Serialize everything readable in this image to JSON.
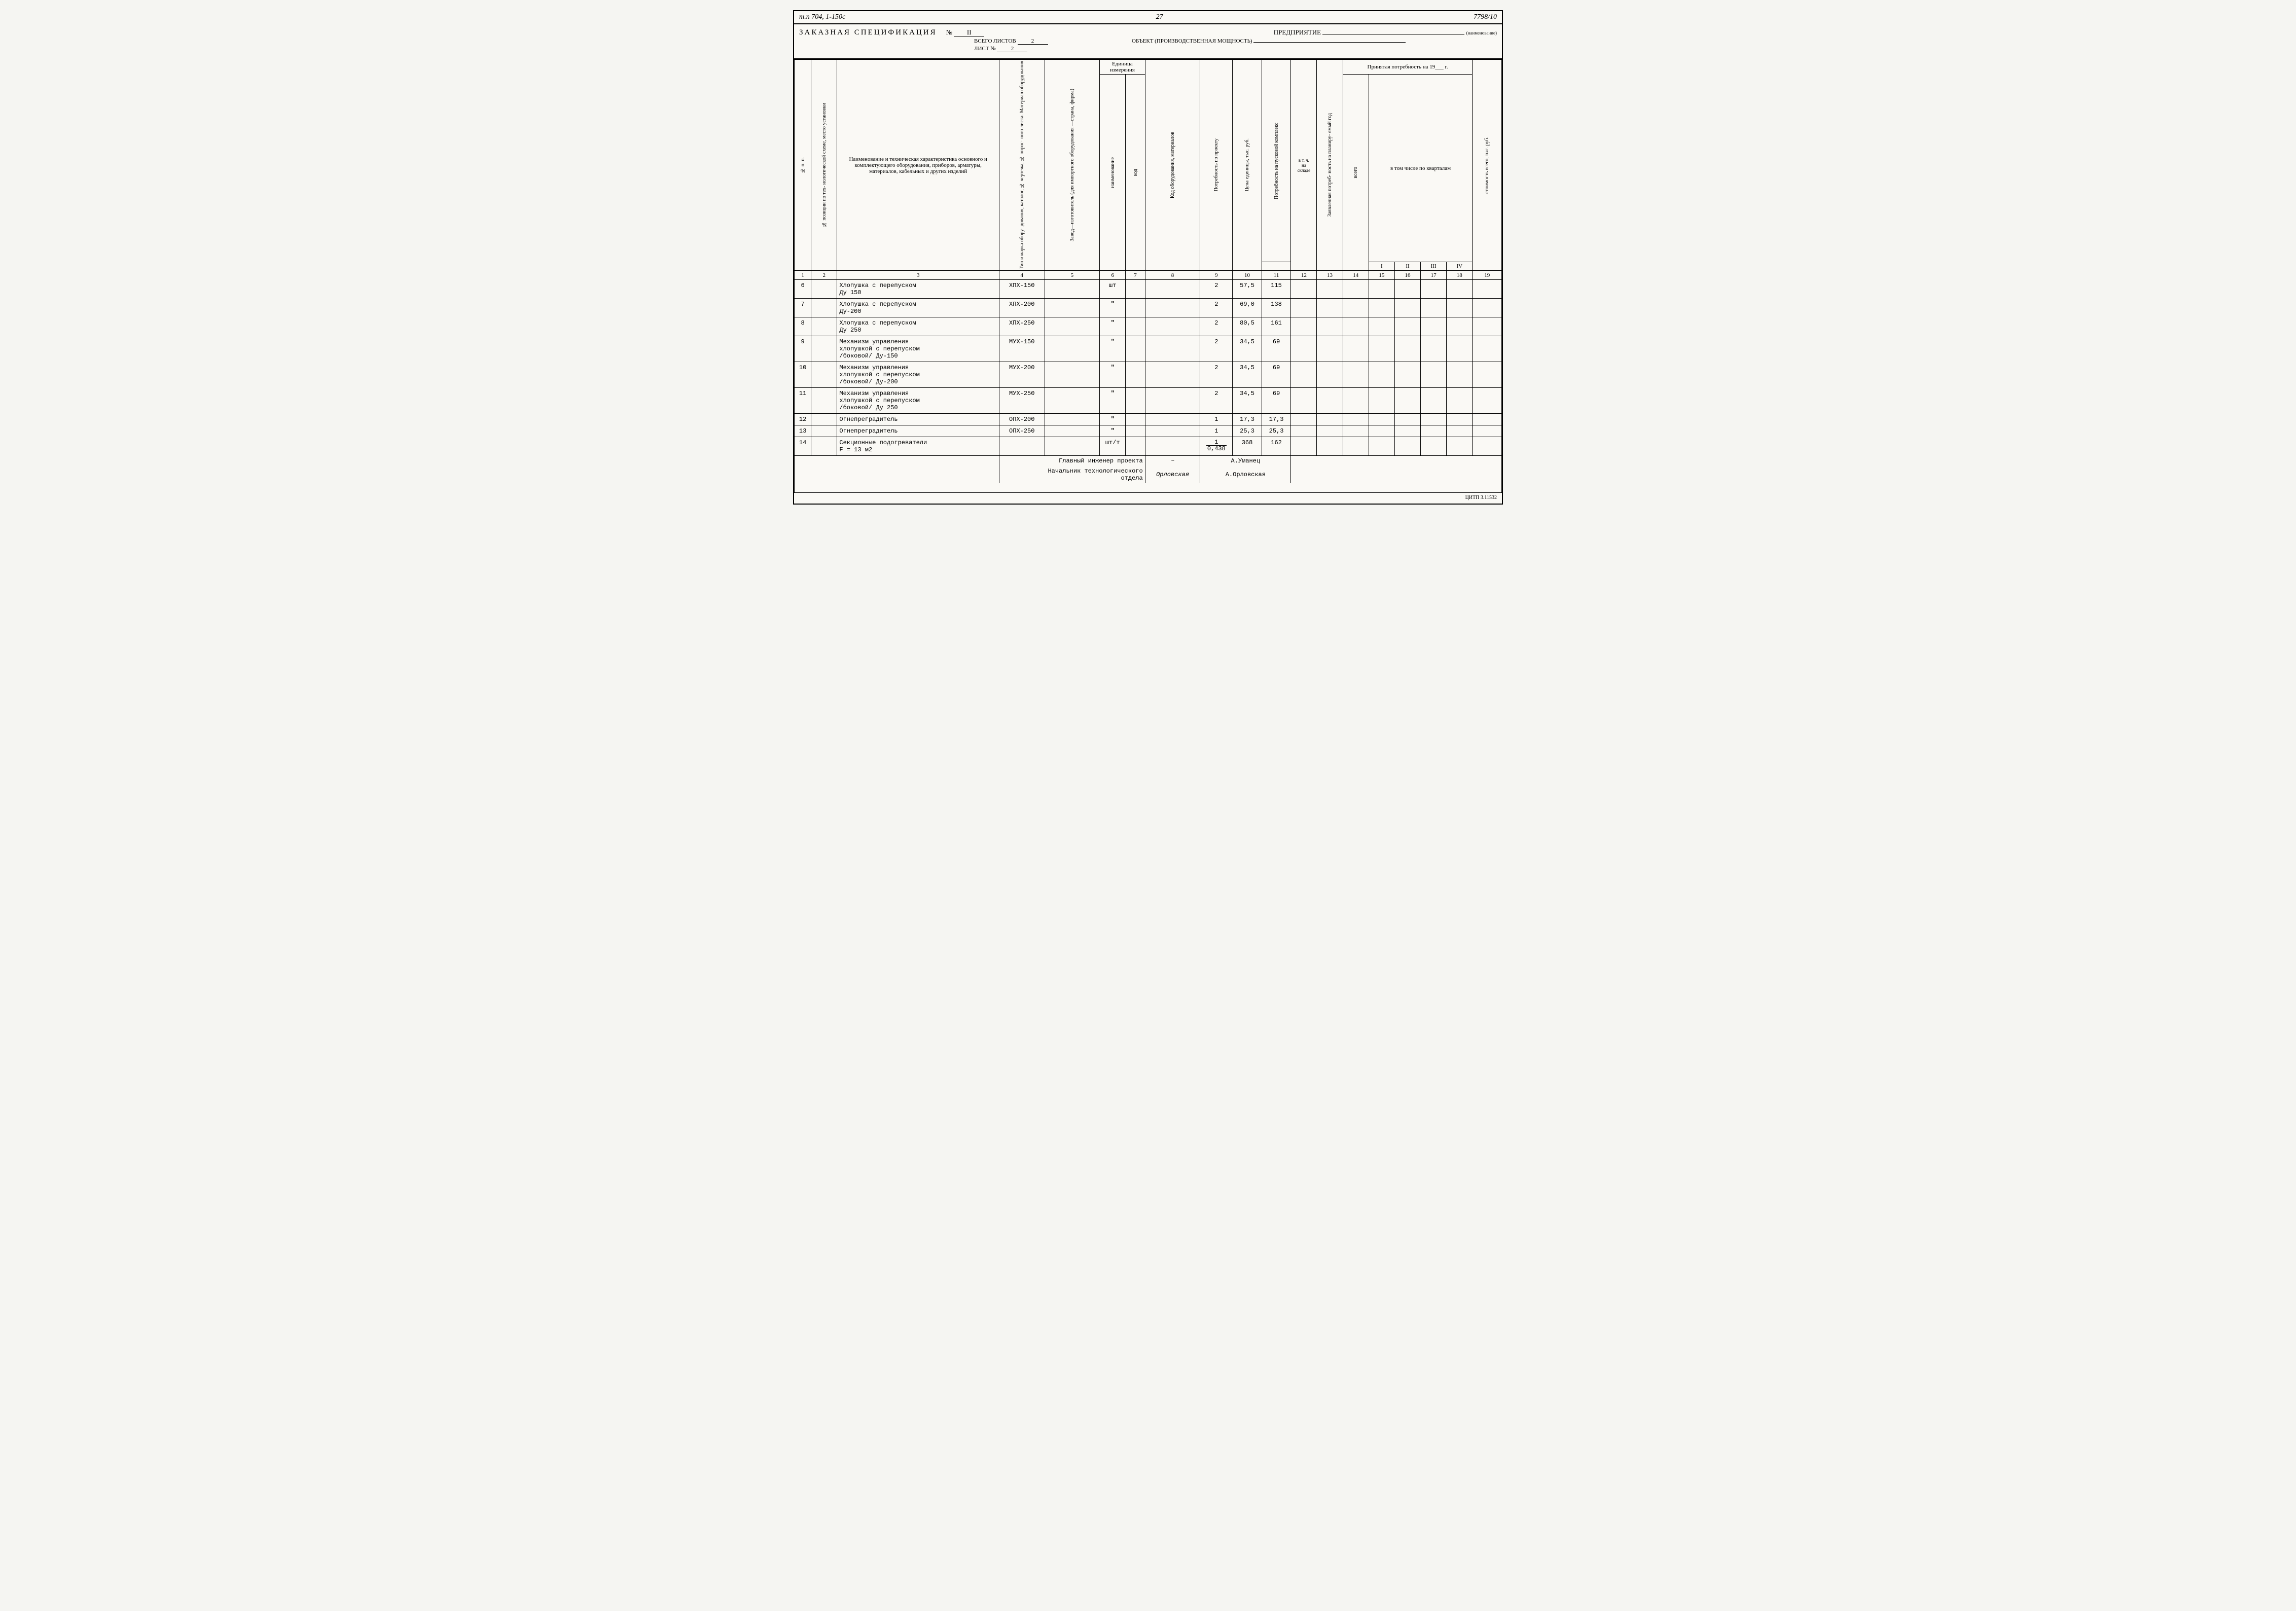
{
  "top": {
    "left_code": "т.п 704, 1-150с",
    "page_num": "27",
    "right_code": "7798/10"
  },
  "header": {
    "title": "ЗАКАЗНАЯ СПЕЦИФИКАЦИЯ",
    "no_label": "№",
    "no_value": "II",
    "total_sheets_label": "ВСЕГО ЛИСТОВ",
    "total_sheets": "2",
    "sheet_label": "ЛИСТ №",
    "sheet": "2",
    "enterprise_label": "ПРЕДПРИЯТИЕ",
    "enterprise_note": "(наименование)",
    "object_label": "ОБЪЕКТ (ПРОИЗВОДСТВЕННАЯ МОЩНОСТЬ)"
  },
  "cols": {
    "c1": "№ п. п.",
    "c2": "№ позиции по тех-\nнологической схеме,\nместо установки",
    "c3": "Наименование и техническая характеристика основного и комплектующего оборудования, приборов, арматуры, материалов, кабельных и других изделий",
    "c4": "Тип и марка обору-\nдования, каталог,\n№ чертежа, № опрос-\nного листа. Материал\nоборудования",
    "c5": "Завод—изготовитель\n(для импортного\nоборудования\n—страна, фирма)",
    "unit_group": "Единица\nизмерения",
    "c6": "наименование",
    "c7": "код",
    "c8": "Код оборудования,\nматериалов",
    "c9": "Потребность\nпо проекту",
    "c10": "Цена единицы,\nтыс. руб.",
    "c11": "Потребность\nна пусковой комплекс",
    "c12": "в т. ч.\nна\nскладе",
    "c13": "Заявленная потреб-\nность на планиру-\nемый год",
    "accepted_group": "Принятая потребность на 19___ г.",
    "quarters_group": "в том числе по кварталам",
    "c14": "всего",
    "c15": "I",
    "c16": "II",
    "c17": "III",
    "c18": "IV",
    "c19": "стоимость\nвсего, тыс. руб."
  },
  "nums": [
    "1",
    "2",
    "3",
    "4",
    "5",
    "6",
    "7",
    "8",
    "9",
    "10",
    "11",
    "12",
    "13",
    "14",
    "15",
    "16",
    "17",
    "18",
    "19"
  ],
  "rows": [
    {
      "n": "6",
      "name": "Хлопушка с перепуском\nДу 150",
      "mark": "ХПХ-150",
      "unit": "шт",
      "qty": "2",
      "price": "57,5",
      "need": "115"
    },
    {
      "n": "7",
      "name": "Хлопушка с перепуском\nДу-200",
      "mark": "ХПХ-200",
      "unit": "\"",
      "qty": "2",
      "price": "69,0",
      "need": "138"
    },
    {
      "n": "8",
      "name": "Хлопушка с перепуском\nДу 250",
      "mark": "ХПХ-250",
      "unit": "\"",
      "qty": "2",
      "price": "80,5",
      "need": "161"
    },
    {
      "n": "9",
      "name": "Механизм управления\nхлопушкой с перепуском\n/боковой/ Ду-150",
      "mark": "МУХ-150",
      "unit": "\"",
      "qty": "2",
      "price": "34,5",
      "need": "69"
    },
    {
      "n": "10",
      "name": "Механизм управления\nхлопушкой с перепуском\n/боковой/ Ду-200",
      "mark": "МУХ-200",
      "unit": "\"",
      "qty": "2",
      "price": "34,5",
      "need": "69"
    },
    {
      "n": "11",
      "name": "Механизм управления\nхлопушкой с перепуском\n/боковой/ Ду 250",
      "mark": "МУХ-250",
      "unit": "\"",
      "qty": "2",
      "price": "34,5",
      "need": "69"
    },
    {
      "n": "12",
      "name": "Огнепреградитель",
      "mark": "ОПХ-200",
      "unit": "\"",
      "qty": "1",
      "price": "17,3",
      "need": "17,3"
    },
    {
      "n": "13",
      "name": "Огнепреградитель",
      "mark": "ОПХ-250",
      "unit": "\"",
      "qty": "1",
      "price": "25,3",
      "need": "25,3"
    },
    {
      "n": "14",
      "name": "Секционные подогреватели\nF = 13 м2",
      "mark": "",
      "unit": "шт/т",
      "qty_frac_n": "1",
      "qty_frac_d": "0,438",
      "price": "368",
      "need": "162"
    }
  ],
  "signatures": {
    "line1_label": "Главный инженер проекта",
    "line1_name": "А.Уманец",
    "line2_label": "Начальник технологического\nотдела",
    "line2_name": "А.Орловская"
  },
  "footer": "ЦИТП 3.11532"
}
